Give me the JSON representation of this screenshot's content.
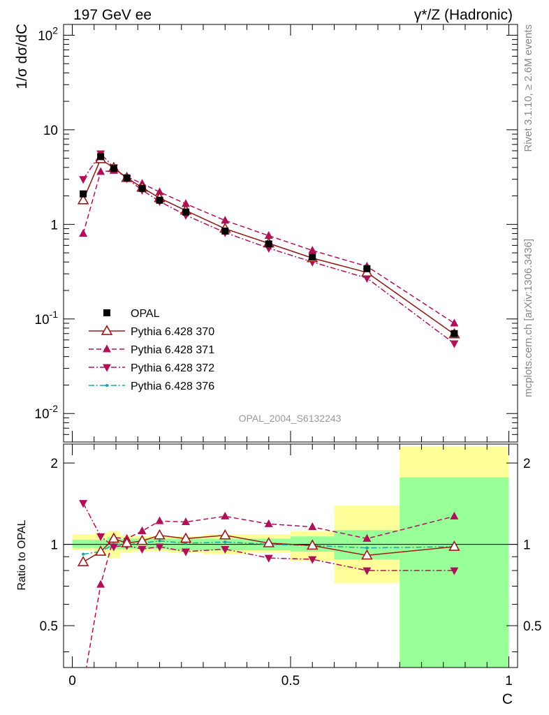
{
  "header": {
    "left_title": "197 GeV ee",
    "right_title": "γ*/Z (Hadronic)",
    "watermark": "OPAL_2004_S6132243",
    "side_text_1": "Rivet 3.1.10, ≥ 2.6M events",
    "side_text_2": "mcplots.cern.ch [arXiv:1306.3436]"
  },
  "chart_data": [
    {
      "type": "line",
      "scale": "log",
      "ylabel": "1/σ dσ/dC",
      "ylim": [
        0.005,
        130
      ],
      "xlim": [
        -0.02,
        1.02
      ],
      "y_tick_labels": [
        "10^-2",
        "10^-1",
        "1",
        "10",
        "10^2"
      ],
      "legend_position": "lower-left",
      "x": [
        0.025,
        0.065,
        0.095,
        0.125,
        0.16,
        0.2,
        0.26,
        0.35,
        0.45,
        0.55,
        0.675,
        0.875
      ],
      "series": [
        {
          "name": "OPAL",
          "color": "#000000",
          "marker": "square",
          "values": [
            2.1,
            5.2,
            3.9,
            3.1,
            2.4,
            1.8,
            1.35,
            0.85,
            0.62,
            0.45,
            0.34,
            0.07
          ]
        },
        {
          "name": "Pythia 6.428 370",
          "color": "#9b1b1b",
          "marker": "triangle-open",
          "dash": "solid",
          "values": [
            1.8,
            4.9,
            3.95,
            3.1,
            2.45,
            1.9,
            1.4,
            0.9,
            0.63,
            0.44,
            0.31,
            0.069
          ]
        },
        {
          "name": "Pythia 6.428 371",
          "color": "#b0105a",
          "marker": "triangle-up",
          "dash": "dashed",
          "values": [
            0.8,
            3.6,
            3.7,
            3.2,
            2.7,
            2.2,
            1.65,
            1.1,
            0.76,
            0.53,
            0.36,
            0.09
          ]
        },
        {
          "name": "Pythia 6.428 372",
          "color": "#b0105a",
          "marker": "triangle-down",
          "dash": "dashdot",
          "values": [
            3.0,
            5.6,
            4.0,
            3.05,
            2.3,
            1.75,
            1.25,
            0.82,
            0.56,
            0.4,
            0.27,
            0.055
          ]
        },
        {
          "name": "Pythia 6.428 376",
          "color": "#1aa3a3",
          "marker": "dot",
          "dash": "dashdot",
          "values": [
            1.8,
            4.9,
            3.95,
            3.1,
            2.45,
            1.9,
            1.4,
            0.9,
            0.63,
            0.44,
            0.31,
            0.069
          ]
        }
      ]
    },
    {
      "type": "line",
      "scale": "log",
      "ylabel": "Ratio to OPAL",
      "xlabel": "C",
      "ylim": [
        0.35,
        2.35
      ],
      "xlim": [
        -0.02,
        1.02
      ],
      "y_ticks": [
        0.5,
        1,
        2
      ],
      "y_tick_labels": [
        "0.5",
        "1",
        "2"
      ],
      "x_ticks": [
        0,
        0.5,
        1
      ],
      "x_tick_labels": [
        "0",
        "0.5",
        "1"
      ],
      "x": [
        0.025,
        0.065,
        0.095,
        0.125,
        0.16,
        0.2,
        0.26,
        0.35,
        0.45,
        0.55,
        0.675,
        0.875
      ],
      "band_edges": [
        0,
        0.05,
        0.08,
        0.11,
        0.14,
        0.18,
        0.22,
        0.3,
        0.4,
        0.5,
        0.6,
        0.75,
        1.0
      ],
      "band_total": [
        [
          0.95,
          1.09
        ],
        [
          0.92,
          1.1
        ],
        [
          0.89,
          1.12
        ],
        [
          0.93,
          1.08
        ],
        [
          0.94,
          1.07
        ],
        [
          0.94,
          1.07
        ],
        [
          0.93,
          1.07
        ],
        [
          0.92,
          1.09
        ],
        [
          0.93,
          1.09
        ],
        [
          0.87,
          1.12
        ],
        [
          0.72,
          1.39
        ],
        [
          0.3,
          2.3
        ]
      ],
      "band_stat": [
        [
          0.97,
          1.04
        ],
        [
          0.97,
          1.04
        ],
        [
          0.96,
          1.06
        ],
        [
          0.96,
          1.05
        ],
        [
          0.96,
          1.05
        ],
        [
          0.96,
          1.05
        ],
        [
          0.95,
          1.05
        ],
        [
          0.95,
          1.05
        ],
        [
          0.95,
          1.05
        ],
        [
          0.94,
          1.07
        ],
        [
          0.88,
          1.13
        ],
        [
          0.3,
          1.77
        ]
      ],
      "series": [
        {
          "name": "Pythia 6.428 370",
          "values": [
            0.86,
            0.94,
            1.05,
            1.01,
            1.03,
            1.08,
            1.05,
            1.08,
            1.01,
            0.99,
            0.91,
            0.98
          ]
        },
        {
          "name": "Pythia 6.428 371",
          "values": [
            0.3,
            0.71,
            1.06,
            1.05,
            1.12,
            1.22,
            1.21,
            1.27,
            1.19,
            1.16,
            1.05,
            1.27
          ]
        },
        {
          "name": "Pythia 6.428 372",
          "values": [
            1.42,
            1.07,
            0.98,
            0.99,
            0.96,
            0.98,
            0.94,
            0.96,
            0.89,
            0.88,
            0.8,
            0.8
          ]
        },
        {
          "name": "Pythia 6.428 376",
          "values": [
            0.92,
            0.94,
            1.0,
            1.0,
            1.01,
            1.03,
            1.01,
            1.02,
            1.0,
            0.99,
            0.97,
            0.98
          ]
        }
      ]
    }
  ]
}
